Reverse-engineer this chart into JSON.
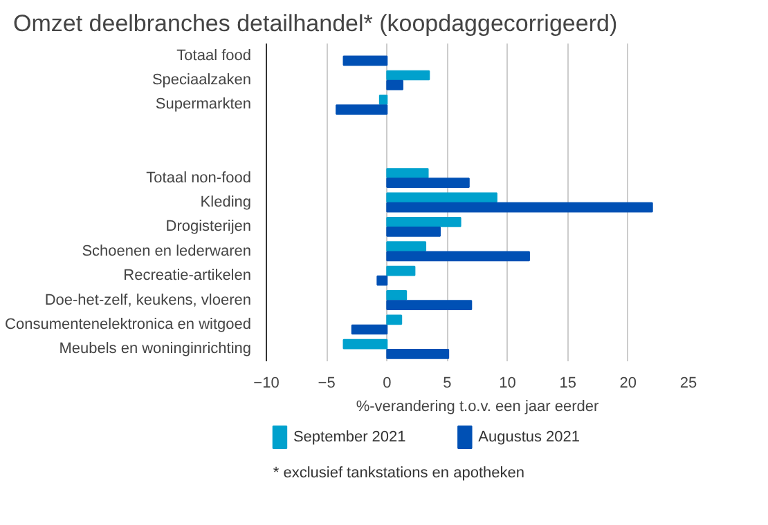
{
  "chart_data": {
    "type": "bar",
    "orientation": "horizontal",
    "title": "Omzet deelbranches detailhandel* (koopdaggecorrigeerd)",
    "xlabel": "%-verandering t.o.v. een jaar eerder",
    "categories": [
      "Totaal food",
      "Speciaalzaken",
      "Supermarkten",
      null,
      null,
      "Totaal non-food",
      "Kleding",
      "Drogisterijen",
      "Schoenen en lederwaren",
      "Recreatie-artikelen",
      "Doe-het-zelf, keukens, vloeren",
      "Consumentenelektronica en witgoed",
      "Meubels en woninginrichting"
    ],
    "series": [
      {
        "name": "September 2021",
        "color": "#00a1cd",
        "values": [
          null,
          3.5,
          -0.6,
          null,
          null,
          3.4,
          9.1,
          6.1,
          3.2,
          2.3,
          1.6,
          1.2,
          -3.6
        ]
      },
      {
        "name": "Augustus 2021",
        "color": "#0050b4",
        "values": [
          -3.6,
          1.3,
          -4.2,
          null,
          null,
          6.8,
          22.0,
          4.4,
          11.8,
          -0.8,
          7.0,
          -2.9,
          5.1
        ]
      }
    ],
    "xlim": [
      -10,
      25
    ],
    "xticks": [
      -10,
      -5,
      0,
      5,
      10,
      15,
      20,
      25
    ],
    "grid": "x",
    "legend": "bottom",
    "annotations": [
      "* exclusief tankstations en apotheken"
    ]
  }
}
